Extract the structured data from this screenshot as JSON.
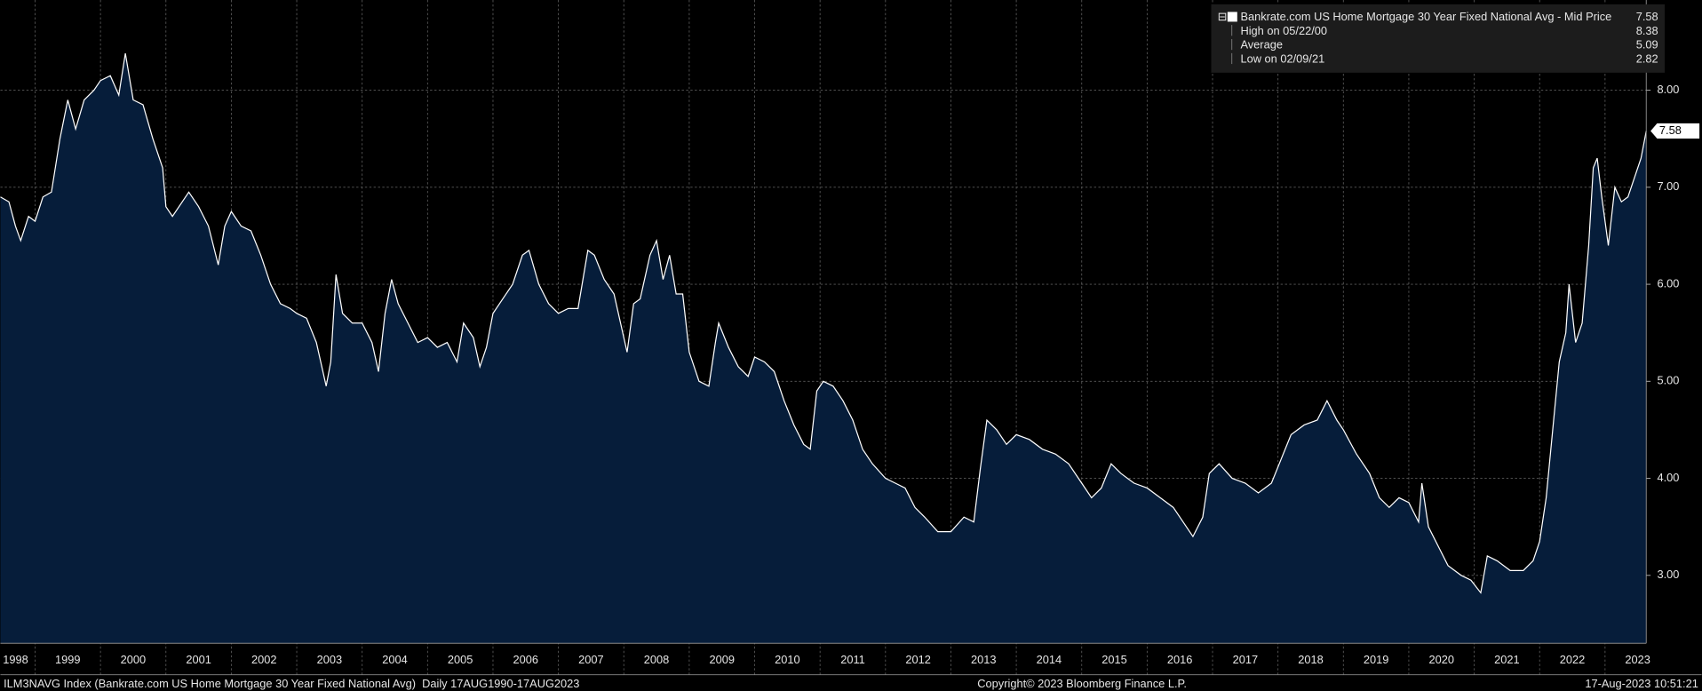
{
  "chart_data": {
    "type": "area",
    "series": [
      {
        "name": "Bankrate.com US Home Mortgage 30 Year Fixed National Avg - Mid Price",
        "color": "#ffffff",
        "fill": "#061d3a",
        "values": [
          6.9,
          6.85,
          6.6,
          6.45,
          6.7,
          6.65,
          6.9,
          6.95,
          7.5,
          7.9,
          7.6,
          7.9,
          8.0,
          8.1,
          8.15,
          7.95,
          8.38,
          7.9,
          7.85,
          7.5,
          7.2,
          6.8,
          6.7,
          6.85,
          6.95,
          6.8,
          6.6,
          6.2,
          6.6,
          6.75,
          6.6,
          6.55,
          6.3,
          6.0,
          5.8,
          5.75,
          5.7,
          5.65,
          5.4,
          4.95,
          5.2,
          6.1,
          5.7,
          5.6,
          5.6,
          5.4,
          5.1,
          5.7,
          6.05,
          5.8,
          5.6,
          5.4,
          5.45,
          5.35,
          5.4,
          5.2,
          5.6,
          5.45,
          5.15,
          5.35,
          5.7,
          5.85,
          6.0,
          6.3,
          6.35,
          6.0,
          5.8,
          5.7,
          5.75,
          5.75,
          6.35,
          6.3,
          6.05,
          5.9,
          5.6,
          5.3,
          5.8,
          5.85,
          6.3,
          6.45,
          6.05,
          6.3,
          5.9,
          5.9,
          5.3,
          5.0,
          4.95,
          5.4,
          5.6,
          5.35,
          5.15,
          5.05,
          5.25,
          5.2,
          5.1,
          4.8,
          4.55,
          4.35,
          4.3,
          4.9,
          5.0,
          4.95,
          4.8,
          4.6,
          4.3,
          4.15,
          4.0,
          3.95,
          3.9,
          3.7,
          3.6,
          3.45,
          3.45,
          3.6,
          3.55,
          4.1,
          4.6,
          4.5,
          4.35,
          4.45,
          4.4,
          4.3,
          4.25,
          4.15,
          3.95,
          3.8,
          3.9,
          4.15,
          4.05,
          3.95,
          3.9,
          3.8,
          3.7,
          3.55,
          3.4,
          3.6,
          4.05,
          4.15,
          4.0,
          3.95,
          3.85,
          3.95,
          4.2,
          4.45,
          4.55,
          4.6,
          4.8,
          4.6,
          4.5,
          4.25,
          4.05,
          3.8,
          3.7,
          3.8,
          3.75,
          3.55,
          3.95,
          3.5,
          3.3,
          3.1,
          3.0,
          2.95,
          2.82,
          3.2,
          3.15,
          3.05,
          3.05,
          3.15,
          3.35,
          3.8,
          4.5,
          5.2,
          5.5,
          6.0,
          5.4,
          5.6,
          6.4,
          7.2,
          7.3,
          6.9,
          6.4,
          7.0,
          6.85,
          6.9,
          7.1,
          7.3,
          7.58
        ]
      }
    ],
    "x": [
      1998.47,
      1998.6,
      1998.7,
      1998.78,
      1998.9,
      1999.0,
      1999.12,
      1999.25,
      1999.38,
      1999.5,
      1999.62,
      1999.75,
      1999.9,
      2000.0,
      2000.15,
      2000.28,
      2000.38,
      2000.5,
      2000.65,
      2000.8,
      2000.95,
      2001.0,
      2001.1,
      2001.25,
      2001.35,
      2001.5,
      2001.65,
      2001.8,
      2001.9,
      2002.0,
      2002.15,
      2002.3,
      2002.45,
      2002.6,
      2002.75,
      2002.9,
      2003.0,
      2003.15,
      2003.3,
      2003.45,
      2003.52,
      2003.6,
      2003.7,
      2003.85,
      2004.0,
      2004.15,
      2004.25,
      2004.35,
      2004.45,
      2004.55,
      2004.7,
      2004.85,
      2005.0,
      2005.15,
      2005.3,
      2005.45,
      2005.55,
      2005.7,
      2005.8,
      2005.9,
      2006.0,
      2006.15,
      2006.3,
      2006.45,
      2006.55,
      2006.7,
      2006.85,
      2007.0,
      2007.15,
      2007.3,
      2007.45,
      2007.55,
      2007.7,
      2007.85,
      2007.95,
      2008.05,
      2008.15,
      2008.25,
      2008.4,
      2008.5,
      2008.6,
      2008.7,
      2008.8,
      2008.9,
      2009.0,
      2009.15,
      2009.3,
      2009.4,
      2009.45,
      2009.6,
      2009.75,
      2009.9,
      2010.0,
      2010.15,
      2010.3,
      2010.45,
      2010.6,
      2010.75,
      2010.85,
      2010.95,
      2011.05,
      2011.2,
      2011.35,
      2011.5,
      2011.65,
      2011.8,
      2012.0,
      2012.15,
      2012.3,
      2012.45,
      2012.6,
      2012.8,
      2013.0,
      2013.2,
      2013.35,
      2013.45,
      2013.55,
      2013.7,
      2013.85,
      2014.0,
      2014.2,
      2014.4,
      2014.6,
      2014.8,
      2015.0,
      2015.15,
      2015.3,
      2015.45,
      2015.6,
      2015.8,
      2016.0,
      2016.2,
      2016.4,
      2016.55,
      2016.7,
      2016.85,
      2016.95,
      2017.1,
      2017.3,
      2017.5,
      2017.7,
      2017.9,
      2018.05,
      2018.2,
      2018.4,
      2018.6,
      2018.75,
      2018.9,
      2019.0,
      2019.2,
      2019.4,
      2019.55,
      2019.7,
      2019.85,
      2020.0,
      2020.15,
      2020.2,
      2020.3,
      2020.45,
      2020.6,
      2020.8,
      2020.95,
      2021.1,
      2021.2,
      2021.35,
      2021.55,
      2021.75,
      2021.9,
      2022.0,
      2022.1,
      2022.2,
      2022.3,
      2022.4,
      2022.45,
      2022.55,
      2022.65,
      2022.75,
      2022.82,
      2022.88,
      2022.95,
      2023.05,
      2023.15,
      2023.25,
      2023.35,
      2023.45,
      2023.55,
      2023.63
    ],
    "xlim": [
      1998.47,
      2023.63
    ],
    "xticks": [
      {
        "value": 1998.5,
        "label": "1998"
      },
      {
        "value": 1999.5,
        "label": "1999"
      },
      {
        "value": 2000.5,
        "label": "2000"
      },
      {
        "value": 2001.5,
        "label": "2001"
      },
      {
        "value": 2002.5,
        "label": "2002"
      },
      {
        "value": 2003.5,
        "label": "2003"
      },
      {
        "value": 2004.5,
        "label": "2004"
      },
      {
        "value": 2005.5,
        "label": "2005"
      },
      {
        "value": 2006.5,
        "label": "2006"
      },
      {
        "value": 2007.5,
        "label": "2007"
      },
      {
        "value": 2008.5,
        "label": "2008"
      },
      {
        "value": 2009.5,
        "label": "2009"
      },
      {
        "value": 2010.5,
        "label": "2010"
      },
      {
        "value": 2011.5,
        "label": "2011"
      },
      {
        "value": 2012.5,
        "label": "2012"
      },
      {
        "value": 2013.5,
        "label": "2013"
      },
      {
        "value": 2014.5,
        "label": "2014"
      },
      {
        "value": 2015.5,
        "label": "2015"
      },
      {
        "value": 2016.5,
        "label": "2016"
      },
      {
        "value": 2017.5,
        "label": "2017"
      },
      {
        "value": 2018.5,
        "label": "2018"
      },
      {
        "value": 2019.5,
        "label": "2019"
      },
      {
        "value": 2020.5,
        "label": "2020"
      },
      {
        "value": 2021.5,
        "label": "2021"
      },
      {
        "value": 2022.5,
        "label": "2022"
      },
      {
        "value": 2023.5,
        "label": "2023"
      }
    ],
    "xgrid": [
      1999,
      2000,
      2001,
      2002,
      2003,
      2004,
      2005,
      2006,
      2007,
      2008,
      2009,
      2010,
      2011,
      2012,
      2013,
      2014,
      2015,
      2016,
      2017,
      2018,
      2019,
      2020,
      2021,
      2022,
      2023
    ],
    "ylim": [
      2.3,
      8.93
    ],
    "yticks": [
      {
        "value": 3,
        "label": "3.00"
      },
      {
        "value": 4,
        "label": "4.00"
      },
      {
        "value": 5,
        "label": "5.00"
      },
      {
        "value": 6,
        "label": "6.00"
      },
      {
        "value": 7,
        "label": "7.00"
      },
      {
        "value": 8,
        "label": "8.00"
      }
    ],
    "grid": true,
    "legend": "top-right",
    "legend_stats": [
      {
        "label": "High on 05/22/00",
        "value": 8.38
      },
      {
        "label": "Average",
        "value": 5.09
      },
      {
        "label": "Low on 02/09/21",
        "value": 2.82
      }
    ],
    "source": "ILM3NAVG Index (Bankrate.com US Home Mortgage 30 Year Fixed National Avg)  Daily 17AUG1990-17AUG2023",
    "copyright": "Copyright© 2023 Bloomberg Finance L.P.",
    "timestamp": "17-Aug-2023 10:51:21"
  }
}
